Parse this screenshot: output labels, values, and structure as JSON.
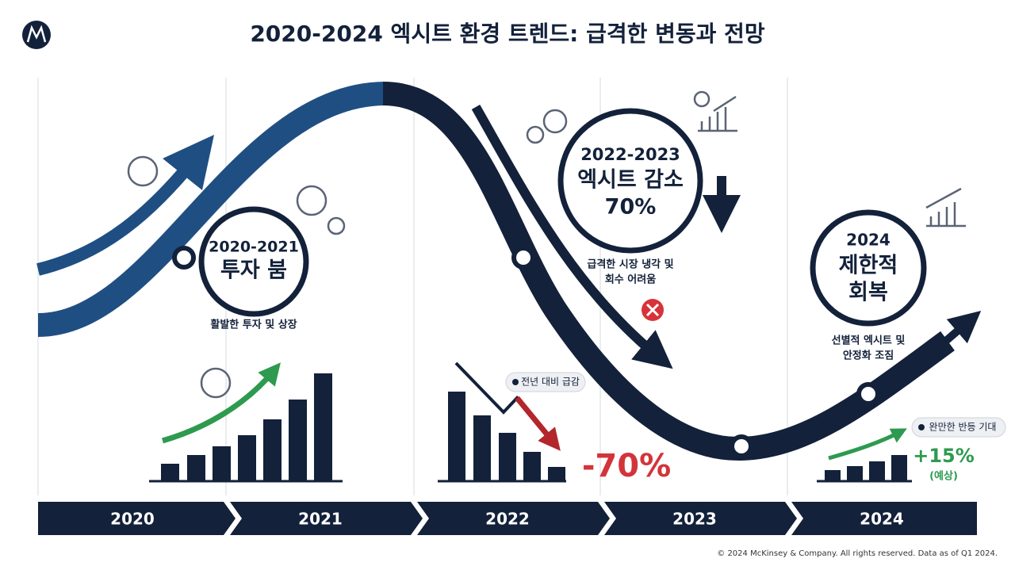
{
  "header": {
    "title": "2020-2024 엑시트 환경 트렌드: 급격한 변동과 전망"
  },
  "phases": [
    {
      "period": "2020-2021",
      "label_lines": [
        "투자 붐"
      ],
      "caption_lines": [
        "활발한 투자 및 상장"
      ]
    },
    {
      "period": "2022-2023",
      "label_lines": [
        "엑시트 감소",
        "70%"
      ],
      "caption_lines": [
        "급격한 시장 냉각 및",
        "회수 어려움"
      ]
    },
    {
      "period": "2024",
      "label_lines": [
        "제한적",
        "회복"
      ],
      "caption_lines": [
        "선별적 엑시트 및",
        "안정화 조짐"
      ]
    }
  ],
  "callouts": [
    {
      "label": "전년 대비 급감",
      "value": "-70%"
    },
    {
      "label": "완만한 반등 기대",
      "value": "+15%",
      "note": "(예상)"
    }
  ],
  "timeline": [
    "2020",
    "2021",
    "2022",
    "2023",
    "2024"
  ],
  "footer": "© 2024 McKinsey & Company. All rights reserved. Data as of Q1 2024."
}
